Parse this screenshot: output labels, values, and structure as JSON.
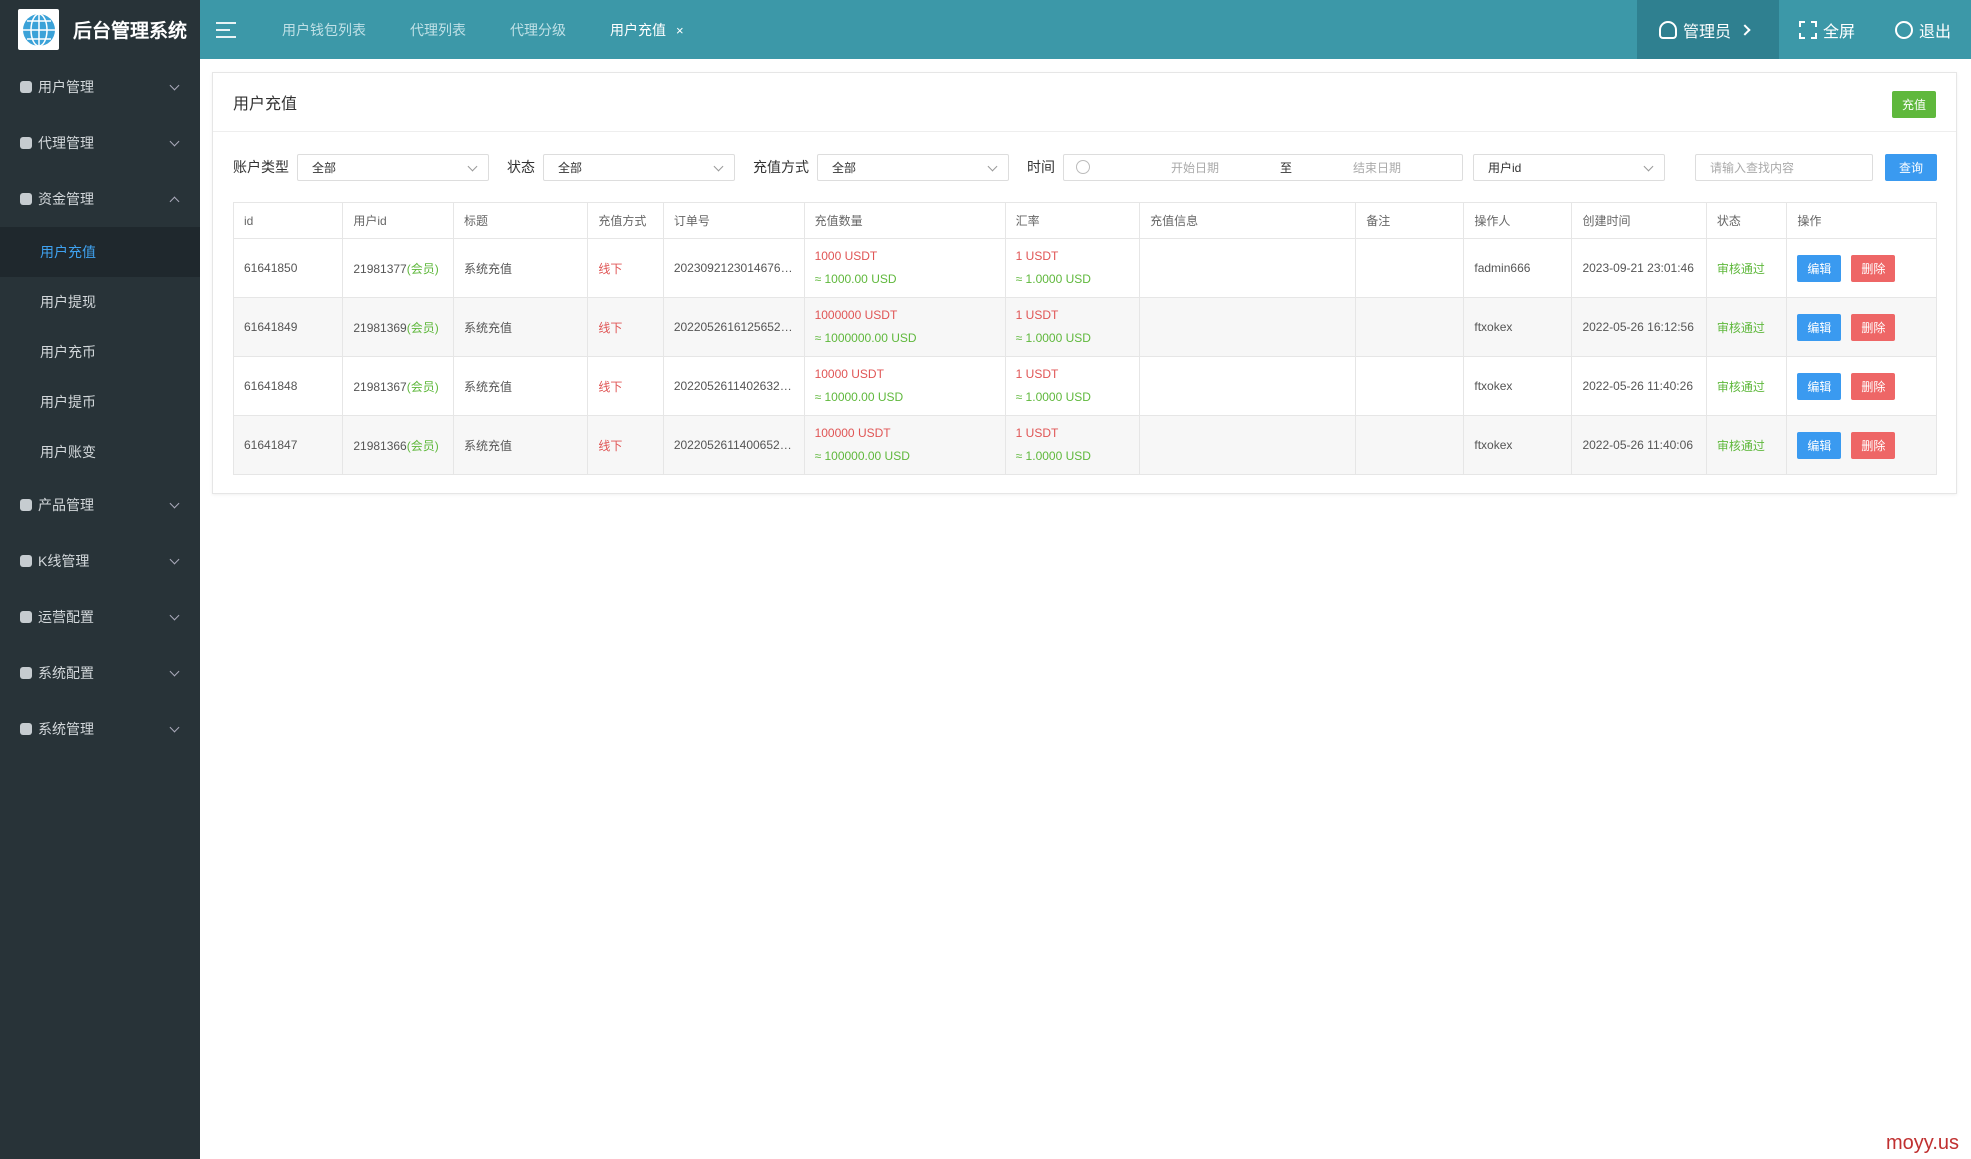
{
  "sidebar": {
    "brand": "后台管理系统",
    "menu": [
      {
        "label": "用户管理"
      },
      {
        "label": "代理管理"
      },
      {
        "label": "资金管理",
        "open": true,
        "children": [
          {
            "label": "用户充值",
            "active": true
          },
          {
            "label": "用户提现"
          },
          {
            "label": "用户充币"
          },
          {
            "label": "用户提币"
          },
          {
            "label": "用户账变"
          }
        ]
      },
      {
        "label": "产品管理"
      },
      {
        "label": "K线管理"
      },
      {
        "label": "运营配置"
      },
      {
        "label": "系统配置"
      },
      {
        "label": "系统管理"
      }
    ]
  },
  "header": {
    "tabs": [
      {
        "label": "用户钱包列表"
      },
      {
        "label": "代理列表"
      },
      {
        "label": "代理分级"
      },
      {
        "label": "用户充值",
        "active": true,
        "close": "×"
      }
    ],
    "user": "管理员",
    "fullscreen": "全屏",
    "logout": "退出"
  },
  "panel": {
    "title": "用户充值",
    "action": "充值"
  },
  "filters": {
    "selects": [
      {
        "label": "账户类型",
        "value": "全部"
      },
      {
        "label": "状态",
        "value": "全部"
      },
      {
        "label": "充值方式",
        "value": "全部"
      }
    ],
    "time": {
      "label": "时间",
      "start": "开始日期",
      "separator": "至",
      "end": "结束日期"
    },
    "field": "用户id",
    "search": "请输入查找内容",
    "button": "查询"
  },
  "table": {
    "columns": [
      "id",
      "用户id",
      "标题",
      "充值方式",
      "订单号",
      "充值数量",
      "汇率",
      "充值信息",
      "备注",
      "操作人",
      "创建时间",
      "状态",
      "操作"
    ],
    "edit": "编辑",
    "delete": "删除",
    "rows": [
      {
        "id": "61641850",
        "user_id": "21981377",
        "user_tag": "(会员)",
        "title": "系统充值",
        "method": "线下",
        "order_no": "2023092123014676…",
        "amount": "1000 USDT",
        "amount_usd": "≈ 1000.00 USD",
        "rate": "1 USDT",
        "rate_usd": "≈ 1.0000 USD",
        "operator": "fadmin666",
        "created": "2023-09-21 23:01:46",
        "status": "审核通过"
      },
      {
        "id": "61641849",
        "user_id": "21981369",
        "user_tag": "(会员)",
        "title": "系统充值",
        "method": "线下",
        "order_no": "2022052616125652…",
        "amount": "1000000 USDT",
        "amount_usd": "≈ 1000000.00 USD",
        "rate": "1 USDT",
        "rate_usd": "≈ 1.0000 USD",
        "operator": "ftxokex",
        "created": "2022-05-26 16:12:56",
        "status": "审核通过"
      },
      {
        "id": "61641848",
        "user_id": "21981367",
        "user_tag": "(会员)",
        "title": "系统充值",
        "method": "线下",
        "order_no": "2022052611402632…",
        "amount": "10000 USDT",
        "amount_usd": "≈ 10000.00 USD",
        "rate": "1 USDT",
        "rate_usd": "≈ 1.0000 USD",
        "operator": "ftxokex",
        "created": "2022-05-26 11:40:26",
        "status": "审核通过"
      },
      {
        "id": "61641847",
        "user_id": "21981366",
        "user_tag": "(会员)",
        "title": "系统充值",
        "method": "线下",
        "order_no": "2022052611400652…",
        "amount": "100000 USDT",
        "amount_usd": "≈ 100000.00 USD",
        "rate": "1 USDT",
        "rate_usd": "≈ 1.0000 USD",
        "operator": "ftxokex",
        "created": "2022-05-26 11:40:06",
        "status": "审核通过"
      }
    ]
  },
  "watermark": "moyy.us"
}
